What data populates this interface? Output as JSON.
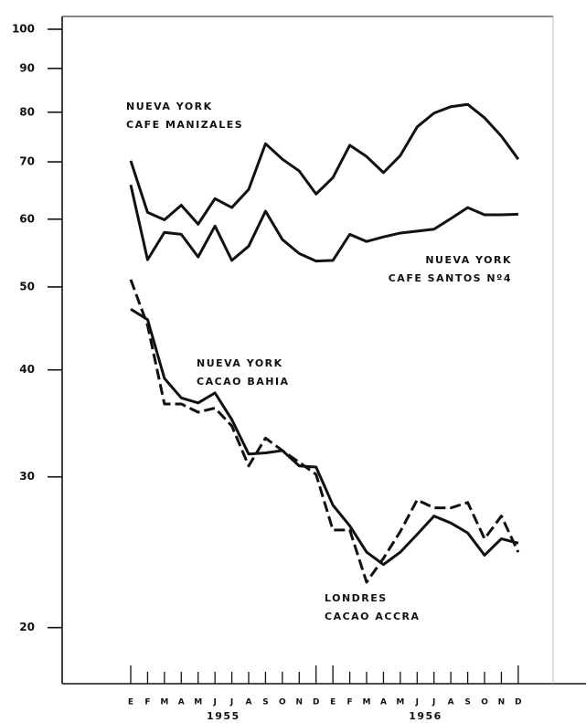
{
  "chart_data": {
    "type": "line",
    "log_y": true,
    "categories": [
      "E",
      "F",
      "M",
      "A",
      "M",
      "J",
      "J",
      "A",
      "S",
      "O",
      "N",
      "D",
      "E",
      "F",
      "M",
      "A",
      "M",
      "J",
      "J",
      "A",
      "S",
      "O",
      "N",
      "D"
    ],
    "year_labels": [
      "1955",
      "1956"
    ],
    "ylim": [
      17.2,
      103.5
    ],
    "yticks": [
      20,
      30,
      40,
      50,
      60,
      70,
      80,
      90,
      100
    ],
    "series": [
      {
        "name": [
          "NUEVA YORK",
          "CAFE MANIZALES"
        ],
        "color": "#111111",
        "dashed": false,
        "values": [
          70.2,
          61.1,
          59.9,
          62.3,
          59.2,
          63.4,
          61.9,
          65.0,
          73.5,
          70.5,
          68.3,
          64.2,
          67.1,
          73.2,
          71.0,
          68.0,
          71.2,
          76.9,
          79.8,
          81.2,
          81.7,
          78.8,
          75.0,
          70.5
        ]
      },
      {
        "name": [
          "NUEVA YORK",
          "CAFE SANTOS Nº4"
        ],
        "color": "#111111",
        "dashed": false,
        "values": [
          65.8,
          53.8,
          57.9,
          57.6,
          54.2,
          58.9,
          53.7,
          55.8,
          61.3,
          56.8,
          54.7,
          53.6,
          53.7,
          57.6,
          56.5,
          57.2,
          57.8,
          58.1,
          58.4,
          60.1,
          61.9,
          60.7,
          60.7,
          60.8
        ]
      },
      {
        "name": [
          "NUEVA YORK",
          "CACAO BAHIA"
        ],
        "color": "#111111",
        "dashed": false,
        "values": [
          47.1,
          45.8,
          39.1,
          37.1,
          36.6,
          37.6,
          35.0,
          31.9,
          32.0,
          32.2,
          30.9,
          30.8,
          27.8,
          26.3,
          24.5,
          23.7,
          24.5,
          25.7,
          27.0,
          26.5,
          25.8,
          24.3,
          25.4,
          25.1
        ]
      },
      {
        "name": [
          "LONDRES",
          "CACAO ACCRA"
        ],
        "color": "#111111",
        "dashed": true,
        "values": [
          51.0,
          45.1,
          36.5,
          36.5,
          35.7,
          36.1,
          34.4,
          30.9,
          33.3,
          32.2,
          31.2,
          30.2,
          26.0,
          26.0,
          22.6,
          24.1,
          25.9,
          28.2,
          27.6,
          27.6,
          28.0,
          25.4,
          27.0,
          24.5
        ]
      }
    ]
  }
}
